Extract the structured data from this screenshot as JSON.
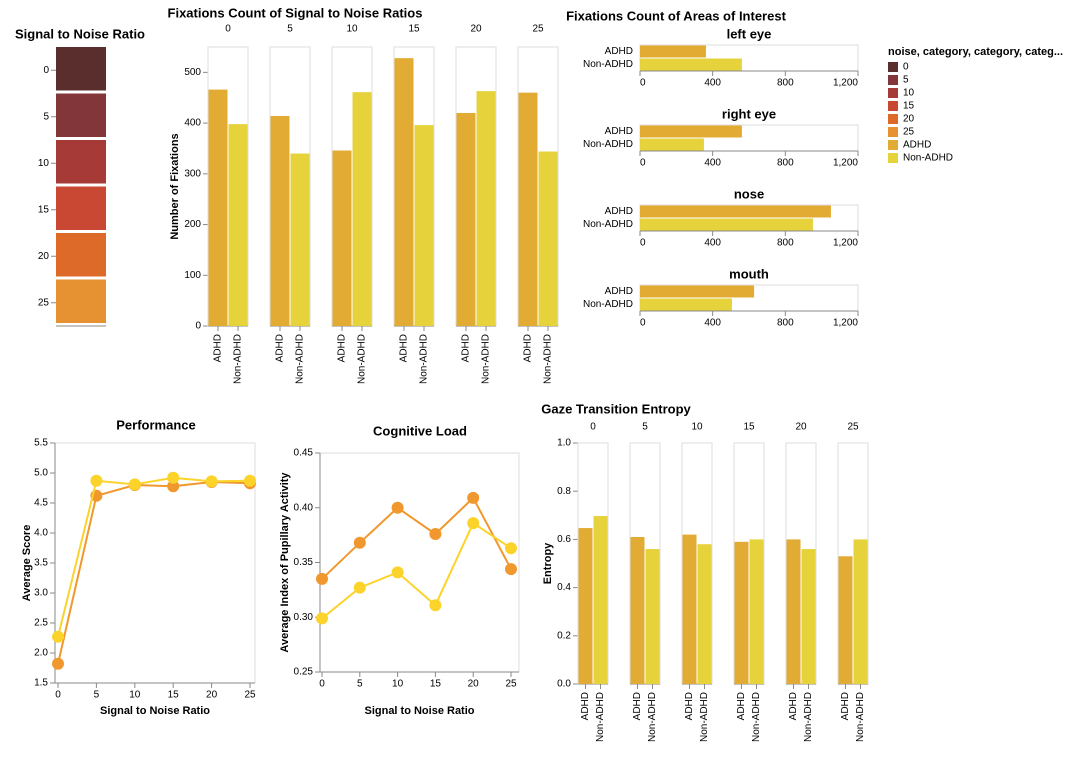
{
  "chart_data": [
    {
      "type": "strip",
      "title": "Signal to Noise Ratio",
      "categories": [
        0,
        5,
        10,
        15,
        20,
        25
      ],
      "colors": [
        "#5a2e2c",
        "#83363a",
        "#a63a37",
        "#c84833",
        "#de6a2a",
        "#e69232"
      ]
    },
    {
      "type": "faceted-bar",
      "title": "Fixations Count of Signal to Noise Ratios",
      "facets": [
        0,
        5,
        10,
        15,
        20,
        25
      ],
      "categories": [
        "ADHD",
        "Non-ADHD"
      ],
      "colors": [
        "#e2ab33",
        "#e6d33c"
      ],
      "values": [
        [
          466,
          398
        ],
        [
          414,
          340
        ],
        [
          346,
          461
        ],
        [
          528,
          396
        ],
        [
          420,
          463
        ],
        [
          460,
          344
        ]
      ],
      "ylabel": "Number of Fixations",
      "ylim": [
        0,
        550
      ],
      "yticks": [
        0,
        100,
        200,
        300,
        400,
        500
      ]
    },
    {
      "type": "faceted-hbar",
      "title": "Fixations Count of Areas of Interest",
      "facets": [
        "left eye",
        "right eye",
        "nose",
        "mouth"
      ],
      "categories": [
        "ADHD",
        "Non-ADHD"
      ],
      "colors": [
        "#e2ab33",
        "#e6d33c"
      ],
      "values": [
        [
          363,
          561
        ],
        [
          561,
          352
        ],
        [
          1051,
          952
        ],
        [
          628,
          506
        ]
      ],
      "xlim": [
        0,
        1200
      ],
      "xticks": [
        0,
        400,
        800,
        {
          "value": 1200,
          "label": "1,200"
        }
      ]
    },
    {
      "type": "legend",
      "title": "noise, category, category, categ...",
      "labels": [
        0,
        5,
        10,
        15,
        20,
        25,
        "ADHD",
        "Non-ADHD"
      ],
      "colors": [
        "#5a2e2c",
        "#83363a",
        "#a63a37",
        "#c84833",
        "#de6a2a",
        "#e69232",
        "#e2ab33",
        "#e6d33c"
      ]
    },
    {
      "type": "line",
      "title": "Performance",
      "xlabel": "Signal to Noise Ratio",
      "ylabel": "Average Score",
      "x": [
        0,
        5,
        10,
        15,
        20,
        25
      ],
      "xlim": [
        0,
        25
      ],
      "xticks": [
        0,
        5,
        10,
        15,
        20,
        25
      ],
      "ylim": [
        1.5,
        5.5
      ],
      "yticks": [
        1.5,
        {
          "value": 2,
          "label": "2.0"
        },
        2.5,
        {
          "value": 3,
          "label": "3.0"
        },
        3.5,
        {
          "value": 4,
          "label": "4.0"
        },
        4.5,
        {
          "value": 5,
          "label": "5.0"
        },
        5.5
      ],
      "series": [
        {
          "color": "#f0982e",
          "values": [
            1.82,
            4.62,
            4.8,
            4.78,
            4.85,
            4.83
          ]
        },
        {
          "color": "#fcd32a",
          "values": [
            2.27,
            4.87,
            4.81,
            4.92,
            4.86,
            4.87
          ]
        }
      ]
    },
    {
      "type": "line",
      "title": "Cognitive Load",
      "xlabel": "Signal to Noise Ratio",
      "ylabel": "Average Index of Pupillary Activity",
      "x": [
        0,
        5,
        10,
        15,
        20,
        25
      ],
      "xlim": [
        0,
        25
      ],
      "xticks": [
        0,
        5,
        10,
        15,
        20,
        25
      ],
      "ylim": [
        0.25,
        0.45
      ],
      "yticks": [
        0.25,
        {
          "value": 0.3,
          "label": "0.30"
        },
        0.35,
        {
          "value": 0.4,
          "label": "0.40"
        },
        0.45
      ],
      "series": [
        {
          "color": "#f0982e",
          "values": [
            0.335,
            0.368,
            0.4,
            0.376,
            0.409,
            0.344
          ]
        },
        {
          "color": "#fcd32a",
          "values": [
            0.299,
            0.327,
            0.341,
            0.311,
            0.386,
            0.363
          ]
        }
      ]
    },
    {
      "type": "faceted-bar",
      "title": "Gaze Transition Entropy",
      "facets": [
        0,
        5,
        10,
        15,
        20,
        25
      ],
      "categories": [
        "ADHD",
        "Non-ADHD"
      ],
      "colors": [
        "#e2ab33",
        "#e6d33c"
      ],
      "values": [
        [
          0.647,
          0.697
        ],
        [
          0.61,
          0.56
        ],
        [
          0.62,
          0.58
        ],
        [
          0.59,
          0.6
        ],
        [
          0.6,
          0.56
        ],
        [
          0.53,
          0.6
        ]
      ],
      "ylabel": "Entropy",
      "ylim": [
        0,
        1
      ],
      "yticks": [
        {
          "value": 0,
          "label": "0.0"
        },
        0.2,
        0.4,
        0.6,
        0.8,
        {
          "value": 1,
          "label": "1.0"
        }
      ]
    }
  ]
}
